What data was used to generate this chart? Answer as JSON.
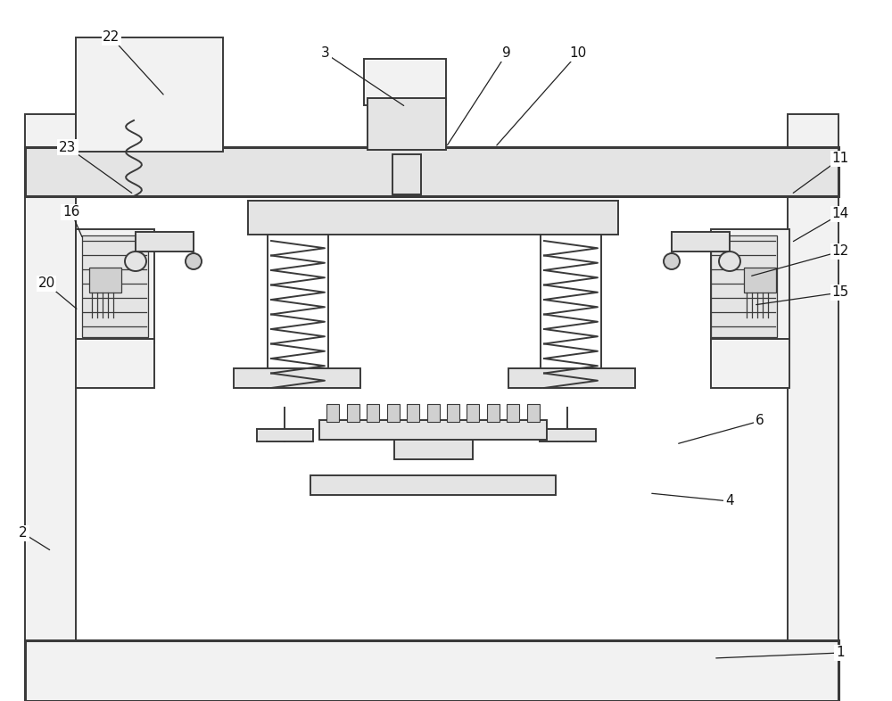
{
  "bg_color": "#ffffff",
  "line_color": "#3a3a3a",
  "fc_light": "#f2f2f2",
  "fc_medium": "#e4e4e4",
  "fc_dark": "#d0d0d0",
  "lw_main": 1.4,
  "lw_thick": 2.2,
  "lw_thin": 0.9,
  "annotations": [
    [
      "22",
      125,
      42,
      185,
      108
    ],
    [
      "3",
      365,
      60,
      455,
      120
    ],
    [
      "9",
      568,
      60,
      500,
      165
    ],
    [
      "10",
      648,
      60,
      555,
      165
    ],
    [
      "11",
      942,
      178,
      887,
      218
    ],
    [
      "23",
      76,
      165,
      150,
      218
    ],
    [
      "16",
      80,
      238,
      93,
      268
    ],
    [
      "14",
      942,
      240,
      887,
      272
    ],
    [
      "12",
      942,
      282,
      840,
      310
    ],
    [
      "20",
      52,
      318,
      88,
      348
    ],
    [
      "15",
      942,
      328,
      845,
      342
    ],
    [
      "6",
      852,
      472,
      758,
      498
    ],
    [
      "4",
      818,
      562,
      728,
      553
    ],
    [
      "2",
      26,
      598,
      58,
      618
    ],
    [
      "1",
      942,
      732,
      800,
      738
    ]
  ]
}
